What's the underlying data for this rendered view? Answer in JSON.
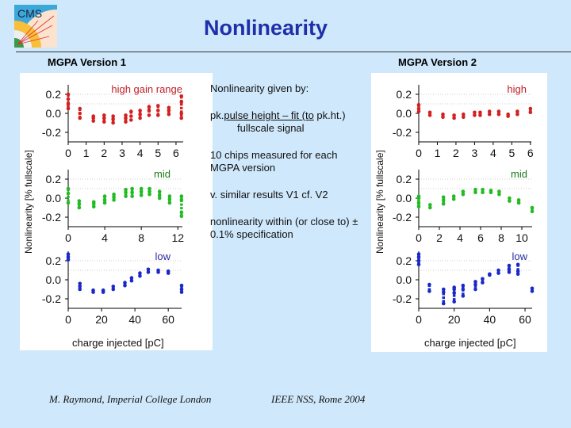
{
  "title": "Nonlinearity",
  "logo_text": "CMS",
  "version1_label": "MGPA Version 1",
  "version2_label": "MGPA Version 2",
  "notes": {
    "line1": "Nonlinearity given by:",
    "fraction_prefix": "pk.",
    "fraction_numerator": "pulse height – fit (to",
    "fraction_suffix": " pk.ht.)",
    "fraction_denominator": "fullscale signal",
    "line3": "10 chips measured for each MGPA version",
    "line4": "v. similar results V1 cf. V2",
    "line5": "nonlinearity within (or close to) ± 0.1% specification"
  },
  "footer": {
    "author": "M. Raymond, Imperial College London",
    "conference": "IEEE NSS, Rome 2004"
  },
  "colors": {
    "background": "#cfe8fb",
    "title": "#1f2fa8",
    "high": "#d42020",
    "mid": "#22bb22",
    "low": "#1a28c8"
  },
  "chart_data": [
    {
      "type": "scatter",
      "group": "MGPA Version 1",
      "panel_label": "high gain range",
      "label_color": "#c0202a",
      "color": "#d42020",
      "ylabel": "Nonlinearity [% fullscale]",
      "xlabel": "",
      "xlim": [
        0,
        6.4
      ],
      "ylim": [
        -0.3,
        0.3
      ],
      "xticks": [
        "0",
        "1",
        "2",
        "3",
        "4",
        "5",
        "6"
      ],
      "yticks": [
        "0.2",
        "0.0",
        "-0.2"
      ],
      "points": [
        [
          0,
          [
            0.05,
            0.1,
            0.15,
            0.2
          ]
        ],
        [
          0.65,
          [
            -0.05,
            0,
            0.05
          ]
        ],
        [
          1.4,
          [
            -0.08,
            -0.05,
            -0.03
          ]
        ],
        [
          2,
          [
            -0.09,
            -0.05,
            -0.02
          ]
        ],
        [
          2.5,
          [
            -0.1,
            -0.06,
            -0.03
          ]
        ],
        [
          3.2,
          [
            -0.09,
            -0.05,
            -0.02
          ]
        ],
        [
          3.5,
          [
            -0.07,
            -0.03,
            0.02
          ]
        ],
        [
          4,
          [
            -0.05,
            -0.01,
            0.03
          ]
        ],
        [
          4.5,
          [
            -0.02,
            0.03,
            0.07
          ]
        ],
        [
          5,
          [
            -0.02,
            0.03,
            0.08
          ]
        ],
        [
          5.6,
          [
            -0.01,
            0.03,
            0.06
          ]
        ],
        [
          6.3,
          [
            -0.05,
            0,
            0.12,
            0.18
          ]
        ]
      ]
    },
    {
      "type": "scatter",
      "group": "MGPA Version 1",
      "panel_label": "mid",
      "label_color": "#1a7a1a",
      "color": "#22bb22",
      "xlim": [
        0,
        12.5
      ],
      "ylim": [
        -0.3,
        0.3
      ],
      "xticks": [
        "0",
        "4",
        "8",
        "12"
      ],
      "yticks": [
        "0.2",
        "0.0",
        "-0.2"
      ],
      "points": [
        [
          0,
          [
            -0.05,
            0.05,
            0.1
          ]
        ],
        [
          1.2,
          [
            -0.1,
            -0.06,
            -0.03
          ]
        ],
        [
          2.8,
          [
            -0.09,
            -0.06,
            -0.04
          ]
        ],
        [
          4,
          [
            -0.05,
            -0.02,
            0.02
          ]
        ],
        [
          5,
          [
            -0.02,
            0.01,
            0.04
          ]
        ],
        [
          6.3,
          [
            0.02,
            0.06,
            0.09
          ]
        ],
        [
          7,
          [
            0.02,
            0.06,
            0.1
          ]
        ],
        [
          8,
          [
            0.03,
            0.07,
            0.1
          ]
        ],
        [
          8.9,
          [
            0.04,
            0.07,
            0.1
          ]
        ],
        [
          10,
          [
            0,
            0.03,
            0.07
          ]
        ],
        [
          11.1,
          [
            -0.05,
            -0.01,
            0.02
          ]
        ],
        [
          12.4,
          [
            -0.19,
            -0.15,
            -0.02,
            0.02
          ]
        ]
      ]
    },
    {
      "type": "scatter",
      "group": "MGPA Version 1",
      "panel_label": "low",
      "label_color": "#2a2aa0",
      "color": "#1a28c8",
      "xlim": [
        0,
        68
      ],
      "ylim": [
        -0.3,
        0.3
      ],
      "xticks": [
        "0",
        "20",
        "40",
        "60"
      ],
      "yticks": [
        "0.2",
        "0.0",
        "-0.2"
      ],
      "xlabel": "charge injected [pC]",
      "points": [
        [
          0,
          [
            0.21,
            0.24,
            0.27
          ]
        ],
        [
          7,
          [
            -0.1,
            -0.07,
            -0.04
          ]
        ],
        [
          15,
          [
            -0.13,
            -0.11
          ]
        ],
        [
          21,
          [
            -0.13,
            -0.11
          ]
        ],
        [
          27,
          [
            -0.1,
            -0.07
          ]
        ],
        [
          34,
          [
            -0.06,
            -0.03
          ]
        ],
        [
          38,
          [
            -0.01,
            0.02
          ]
        ],
        [
          43,
          [
            0.04,
            0.07
          ]
        ],
        [
          48,
          [
            0.08,
            0.11
          ]
        ],
        [
          54,
          [
            0.08,
            0.1
          ]
        ],
        [
          60,
          [
            0.07,
            0.09
          ]
        ],
        [
          68,
          [
            -0.13,
            -0.1,
            -0.06
          ]
        ]
      ]
    },
    {
      "type": "scatter",
      "group": "MGPA Version 2",
      "panel_label": "high",
      "label_color": "#c0202a",
      "color": "#d42020",
      "ylabel": "Nonlinearity [% fullscale]",
      "xlim": [
        0,
        6.05
      ],
      "ylim": [
        -0.3,
        0.3
      ],
      "xticks": [
        "0",
        "1",
        "2",
        "3",
        "4",
        "5",
        "6"
      ],
      "yticks": [
        "0.2",
        "0.0",
        "-0.2"
      ],
      "points": [
        [
          0,
          [
            0.02,
            0.05,
            0.09
          ]
        ],
        [
          0.6,
          [
            -0.02,
            0.01
          ]
        ],
        [
          1.3,
          [
            -0.04,
            -0.01
          ]
        ],
        [
          1.9,
          [
            -0.05,
            -0.02
          ]
        ],
        [
          2.4,
          [
            -0.04,
            -0.01
          ]
        ],
        [
          3,
          [
            -0.02,
            0.01
          ]
        ],
        [
          3.3,
          [
            -0.02,
            0.01
          ]
        ],
        [
          3.8,
          [
            -0.01,
            0.02
          ]
        ],
        [
          4.3,
          [
            -0.01,
            0.02
          ]
        ],
        [
          4.8,
          [
            -0.03,
            -0.01
          ]
        ],
        [
          5.3,
          [
            -0.01,
            0.02
          ]
        ],
        [
          6,
          [
            0.01,
            0.05
          ]
        ]
      ]
    },
    {
      "type": "scatter",
      "group": "MGPA Version 2",
      "panel_label": "mid",
      "label_color": "#1a7a1a",
      "color": "#22bb22",
      "xlim": [
        0,
        11
      ],
      "ylim": [
        -0.3,
        0.3
      ],
      "xticks": [
        "0",
        "2",
        "4",
        "6",
        "8",
        "10"
      ],
      "yticks": [
        "0.2",
        "0.0",
        "-0.2"
      ],
      "points": [
        [
          0,
          [
            -0.09,
            -0.05,
            0,
            0.02
          ]
        ],
        [
          1.1,
          [
            -0.1,
            -0.07
          ]
        ],
        [
          2.4,
          [
            -0.06,
            -0.02,
            0.01
          ]
        ],
        [
          3.4,
          [
            -0.01,
            0.02
          ]
        ],
        [
          4.3,
          [
            0.04,
            0.07
          ]
        ],
        [
          5.5,
          [
            0.06,
            0.09
          ]
        ],
        [
          6.2,
          [
            0.06,
            0.09
          ]
        ],
        [
          7,
          [
            0.06,
            0.08
          ]
        ],
        [
          7.8,
          [
            0.04,
            0.07
          ]
        ],
        [
          8.8,
          [
            -0.03,
            0
          ]
        ],
        [
          9.7,
          [
            -0.05,
            -0.02
          ]
        ],
        [
          11,
          [
            -0.14,
            -0.1
          ]
        ]
      ]
    },
    {
      "type": "scatter",
      "group": "MGPA Version 2",
      "panel_label": "low",
      "label_color": "#2a2aa0",
      "color": "#1a28c8",
      "xlim": [
        0,
        64
      ],
      "ylim": [
        -0.3,
        0.3
      ],
      "xticks": [
        "0",
        "20",
        "40",
        "60"
      ],
      "yticks": [
        "0.2",
        "0.0",
        "-0.2"
      ],
      "xlabel": "charge injected [pC]",
      "points": [
        [
          0,
          [
            0.16,
            0.2,
            0.24,
            0.27
          ]
        ],
        [
          6,
          [
            -0.12,
            -0.05
          ]
        ],
        [
          14,
          [
            -0.25,
            -0.13,
            -0.1
          ]
        ],
        [
          20,
          [
            -0.23,
            -0.14,
            -0.1,
            -0.08
          ]
        ],
        [
          25,
          [
            -0.17,
            -0.1,
            -0.06
          ]
        ],
        [
          32,
          [
            -0.1,
            -0.05,
            -0.02
          ]
        ],
        [
          36,
          [
            -0.03,
            0.01
          ]
        ],
        [
          40,
          [
            0.05,
            0.06
          ]
        ],
        [
          45,
          [
            0.07,
            0.1
          ]
        ],
        [
          51,
          [
            0.08,
            0.11,
            0.15
          ]
        ],
        [
          56,
          [
            0.06,
            0.09,
            0.16
          ]
        ],
        [
          64,
          [
            -0.12,
            -0.09
          ]
        ]
      ]
    }
  ]
}
